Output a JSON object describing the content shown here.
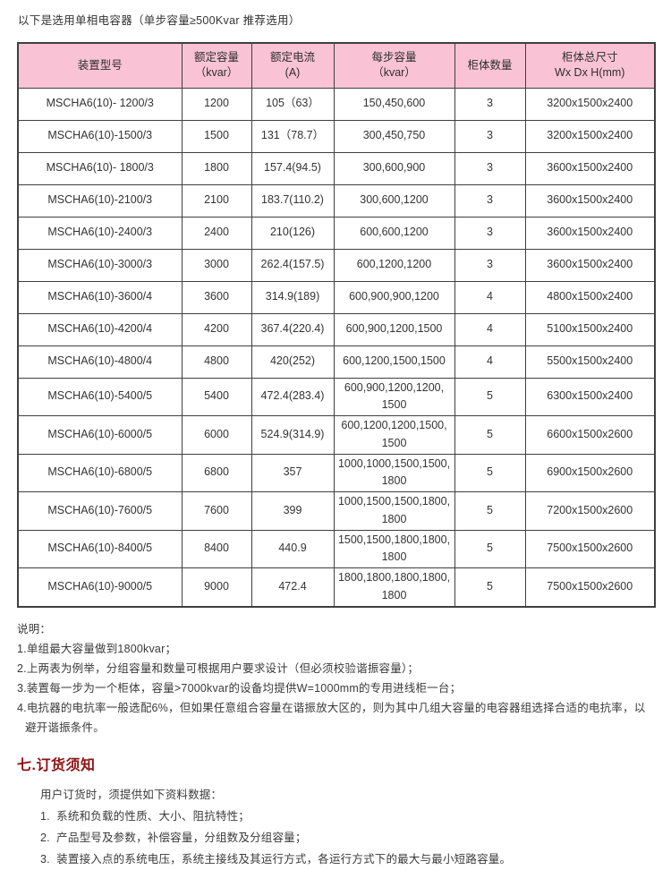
{
  "page": {
    "title": "以下是选用单相电容器（单步容量≥500Kvar 推荐选用）"
  },
  "colors": {
    "header_bg": "#f9c3d5",
    "table_border": "#3f3f3f",
    "heading_red": "#8e1212",
    "text": "#333333"
  },
  "table": {
    "headers": [
      "装置型号",
      "额定容量\n（kvar）",
      "额定电流\n(A)",
      "每步容量\n（kvar）",
      "柜体数量",
      "柜体总尺寸\nWx Dx H(mm)"
    ],
    "rows": [
      [
        "MSCHA6(10)- 1200/3",
        "1200",
        "105（63）",
        "150,450,600",
        "3",
        "3200x1500x2400"
      ],
      [
        "MSCHA6(10)-1500/3",
        "1500",
        "131（78.7）",
        "300,450,750",
        "3",
        "3200x1500x2400"
      ],
      [
        "MSCHA6(10)- 1800/3",
        "1800",
        "157.4(94.5)",
        "300,600,900",
        "3",
        "3600x1500x2400"
      ],
      [
        "MSCHA6(10)-2100/3",
        "2100",
        "183.7(110.2)",
        "300,600,1200",
        "3",
        "3600x1500x2400"
      ],
      [
        "MSCHA6(10)-2400/3",
        "2400",
        "210(126)",
        "600,600,1200",
        "3",
        "3600x1500x2400"
      ],
      [
        "MSCHA6(10)-3000/3",
        "3000",
        "262.4(157.5)",
        "600,1200,1200",
        "3",
        "3600x1500x2400"
      ],
      [
        "MSCHA6(10)-3600/4",
        "3600",
        "314.9(189)",
        "600,900,900,1200",
        "4",
        "4800x1500x2400"
      ],
      [
        "MSCHA6(10)-4200/4",
        "4200",
        "367.4(220.4)",
        "600,900,1200,1500",
        "4",
        "5100x1500x2400"
      ],
      [
        "MSCHA6(10)-4800/4",
        "4800",
        "420(252)",
        "600,1200,1500,1500",
        "4",
        "5500x1500x2400"
      ],
      [
        "MSCHA6(10)-5400/5",
        "5400",
        "472.4(283.4)",
        "600,900,1200,1200,\n1500",
        "5",
        "6300x1500x2400"
      ],
      [
        "MSCHA6(10)-6000/5",
        "6000",
        "524.9(314.9)",
        "600,1200,1200,1500,\n1500",
        "5",
        "6600x1500x2600"
      ],
      [
        "MSCHA6(10)-6800/5",
        "6800",
        "357",
        "1000,1000,1500,1500,\n1800",
        "5",
        "6900x1500x2600"
      ],
      [
        "MSCHA6(10)-7600/5",
        "7600",
        "399",
        "1000,1500,1500,1800,\n1800",
        "5",
        "7200x1500x2600"
      ],
      [
        "MSCHA6(10)-8400/5",
        "8400",
        "440.9",
        "1500,1500,1800,1800,\n1800",
        "5",
        "7500x1500x2600"
      ],
      [
        "MSCHA6(10)-9000/5",
        "9000",
        "472.4",
        "1800,1800,1800,1800,\n1800",
        "5",
        "7500x1500x2600"
      ]
    ]
  },
  "notes": {
    "label": "说明：",
    "items": [
      "1.单组最大容量做到1800kvar；",
      "2.上两表为例举，分组容量和数量可根据用户要求设计（但必须校验谐振容量）；",
      "3.装置每一步为一个柜体，容量>7000kvar的设备均提供W=1000mm的专用进线柜一台；",
      "4.电抗器的电抗率一般选配6%，但如果任意组合容量在谐振放大区的，则为其中几组大容量的电容器组选择合适的电抗率，以避开谐振条件。"
    ]
  },
  "ordering": {
    "heading": "七.订货须知",
    "intro": "用户订货时，须提供如下资料数据：",
    "items": [
      "1.  系统和负载的性质、大小、阻抗特性；",
      "2.  产品型号及参数，补偿容量，分组数及分组容量；",
      "3.  装置接入点的系统电压，系统主接线及其运行方式，各运行方式下的最大与最小短路容量。"
    ]
  }
}
